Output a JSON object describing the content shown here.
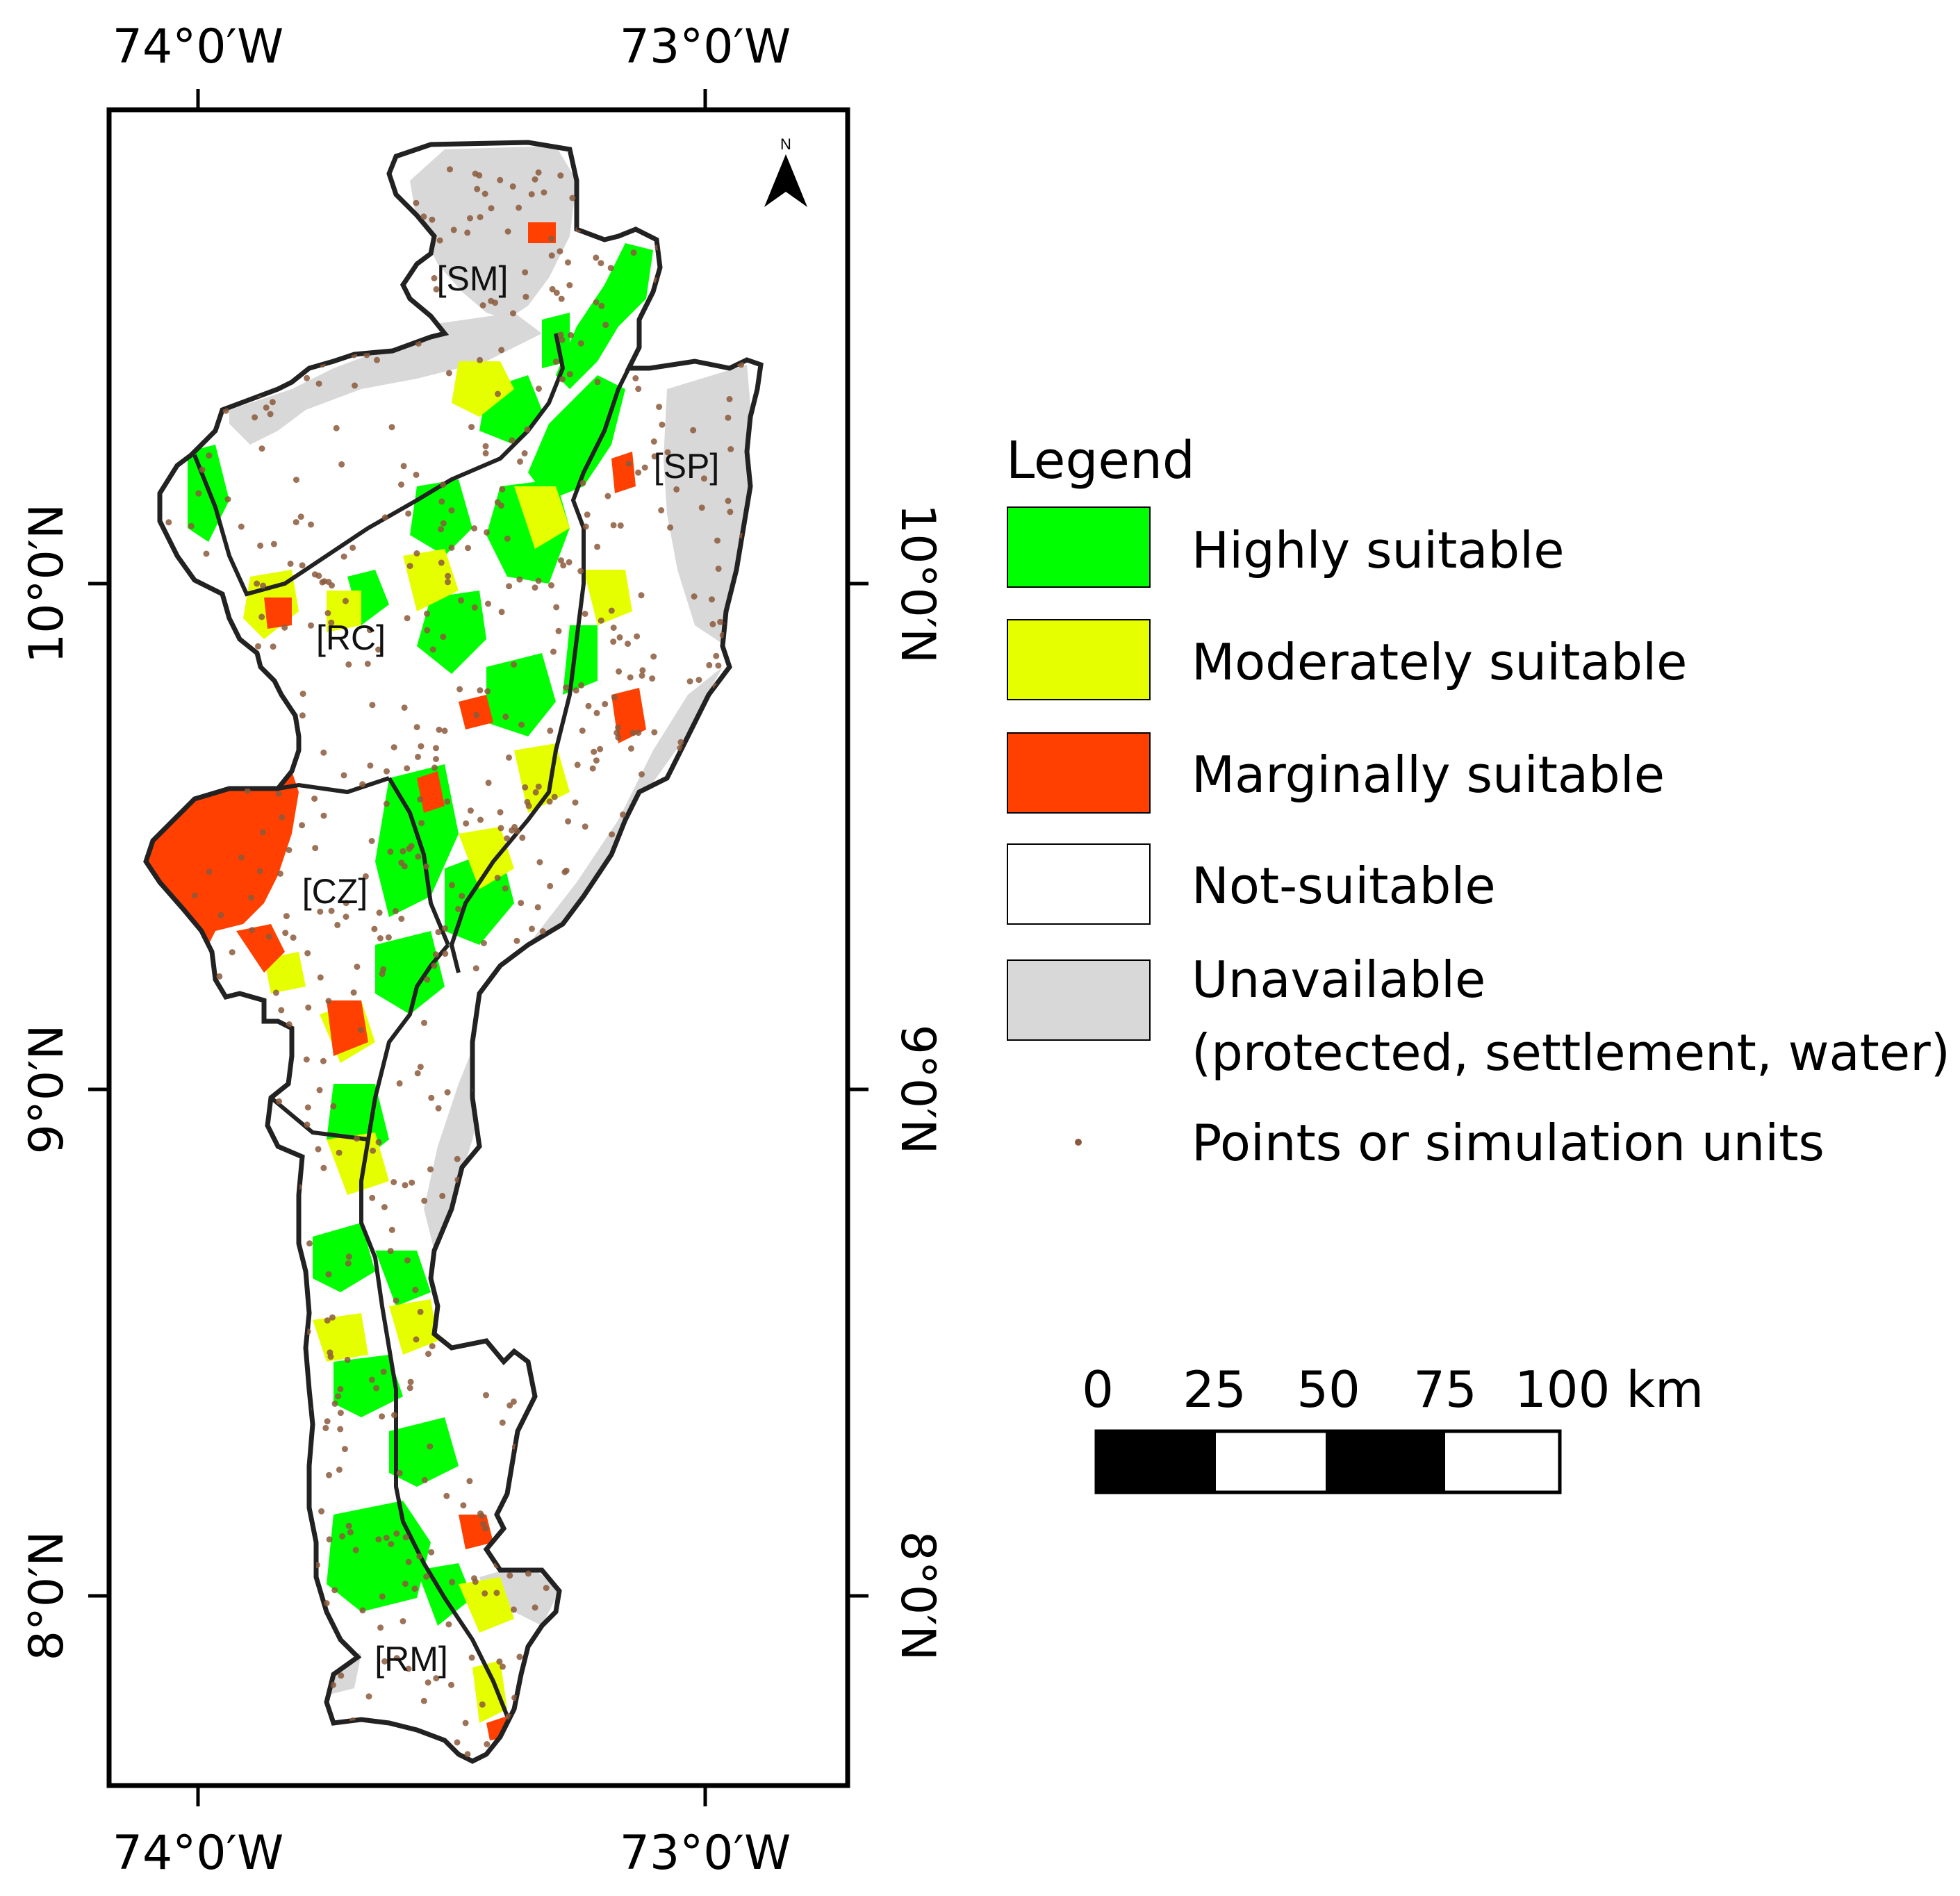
{
  "axes": {
    "top_ticks": [
      "74°0′W",
      "73°0′W"
    ],
    "bottom_ticks": [
      "74°0′W",
      "73°0′W"
    ],
    "left_ticks": [
      "10°0′N",
      "9°0′N",
      "8°0′N"
    ],
    "right_ticks": [
      "10°0′N",
      "9°0′N",
      "8°0′N"
    ]
  },
  "north_arrow": {
    "label": "N"
  },
  "regions": [
    "[SM]",
    "[SP]",
    "[RC]",
    "[CZ]",
    "[RM]"
  ],
  "legend": {
    "title": "Legend",
    "items": [
      {
        "label": "Highly suitable",
        "color": "#00ff00"
      },
      {
        "label": "Moderately suitable",
        "color": "#e6ff00"
      },
      {
        "label": "Marginally suitable",
        "color": "#ff4000"
      },
      {
        "label": "Not-suitable",
        "color": "#ffffff"
      },
      {
        "label": "Unavailable",
        "label2": "(protected, settlement, water)",
        "color": "#d8d8d8"
      },
      {
        "label": "Points or simulation units",
        "color": "#8b5a3c"
      }
    ]
  },
  "scale_bar": {
    "ticks": [
      "0",
      "25",
      "50",
      "75",
      "100 km"
    ]
  }
}
